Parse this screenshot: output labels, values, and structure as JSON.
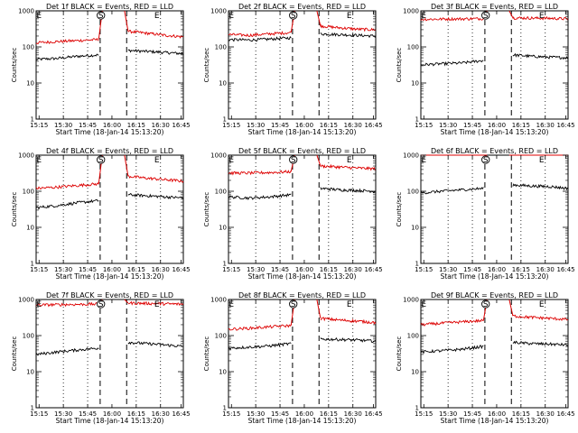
{
  "chart_data": [
    {
      "type": "line",
      "title": "Det 1f BLACK = Events, RED = LLD",
      "xlabel": "Start Time (18-Jan-14 15:13:20)",
      "ylabel": "Counts/sec",
      "xtick_labels": [
        "15:15",
        "15:30",
        "15:45",
        "16:00",
        "16:15",
        "16:30",
        "16:45"
      ],
      "ytick_labels": [
        "1",
        "10",
        "100",
        "1000"
      ],
      "ylim": [
        1,
        1000
      ],
      "markers": [
        "E",
        "S",
        "E"
      ],
      "series": [
        {
          "color": "#000000",
          "left": [
            45,
            48,
            55,
            60
          ],
          "right": [
            80,
            75,
            70,
            65
          ]
        },
        {
          "color": "#dd0000",
          "left": [
            130,
            140,
            150,
            160
          ],
          "right": [
            270,
            240,
            210,
            190
          ]
        }
      ]
    },
    {
      "type": "line",
      "title": "Det 2f BLACK = Events, RED = LLD",
      "xlabel": "Start Time (18-Jan-14 15:13:20)",
      "ylabel": "Counts/sec",
      "xtick_labels": [
        "15:15",
        "15:30",
        "15:45",
        "16:00",
        "16:15",
        "16:30",
        "16:45"
      ],
      "ytick_labels": [
        "1",
        "10",
        "100",
        "1000"
      ],
      "ylim": [
        1,
        1000
      ],
      "markers": [
        "E",
        "S",
        "E"
      ],
      "series": [
        {
          "color": "#000000",
          "left": [
            160,
            155,
            165,
            180
          ],
          "right": [
            230,
            220,
            210,
            200
          ]
        },
        {
          "color": "#dd0000",
          "left": [
            220,
            210,
            230,
            250
          ],
          "right": [
            380,
            340,
            310,
            300
          ]
        }
      ]
    },
    {
      "type": "line",
      "title": "Det 3f BLACK = Events, RED = LLD",
      "xlabel": "Start Time (18-Jan-14 15:13:20)",
      "ylabel": "Counts/sec",
      "xtick_labels": [
        "15:15",
        "15:30",
        "15:45",
        "16:00",
        "16:15",
        "16:30",
        "16:45"
      ],
      "ytick_labels": [
        "1",
        "10",
        "100",
        "1000"
      ],
      "ylim": [
        1,
        1000
      ],
      "markers": [
        "E",
        "S",
        "E"
      ],
      "series": [
        {
          "color": "#000000",
          "left": [
            32,
            34,
            36,
            42
          ],
          "right": [
            60,
            55,
            52,
            50
          ]
        },
        {
          "color": "#dd0000",
          "left": [
            580,
            590,
            600,
            610
          ],
          "right": [
            640,
            630,
            620,
            600
          ]
        }
      ]
    },
    {
      "type": "line",
      "title": "Det 4f BLACK = Events, RED = LLD",
      "xlabel": "Start Time (18-Jan-14 15:13:20)",
      "ylabel": "Counts/sec",
      "xtick_labels": [
        "15:15",
        "15:30",
        "15:45",
        "16:00",
        "16:15",
        "16:30",
        "16:45"
      ],
      "ytick_labels": [
        "1",
        "10",
        "100",
        "1000"
      ],
      "ylim": [
        1,
        1000
      ],
      "markers": [
        "E",
        "S",
        "E"
      ],
      "series": [
        {
          "color": "#000000",
          "left": [
            35,
            40,
            48,
            55
          ],
          "right": [
            80,
            75,
            70,
            65
          ]
        },
        {
          "color": "#dd0000",
          "left": [
            120,
            130,
            145,
            160
          ],
          "right": [
            260,
            230,
            210,
            190
          ]
        }
      ]
    },
    {
      "type": "line",
      "title": "Det 5f BLACK = Events, RED = LLD",
      "xlabel": "Start Time (18-Jan-14 15:13:20)",
      "ylabel": "Counts/sec",
      "xtick_labels": [
        "15:15",
        "15:30",
        "15:45",
        "16:00",
        "16:15",
        "16:30",
        "16:45"
      ],
      "ytick_labels": [
        "1",
        "10",
        "100",
        "1000"
      ],
      "ylim": [
        1,
        1000
      ],
      "markers": [
        "E",
        "S",
        "E"
      ],
      "series": [
        {
          "color": "#000000",
          "left": [
            70,
            65,
            70,
            80
          ],
          "right": [
            120,
            110,
            105,
            100
          ]
        },
        {
          "color": "#dd0000",
          "left": [
            320,
            320,
            330,
            350
          ],
          "right": [
            500,
            470,
            440,
            420
          ]
        }
      ]
    },
    {
      "type": "line",
      "title": "Det 6f BLACK = Events, RED = LLD",
      "xlabel": "Start Time (18-Jan-14 15:13:20)",
      "ylabel": "Counts/sec",
      "xtick_labels": [
        "15:15",
        "15:30",
        "15:45",
        "16:00",
        "16:15",
        "16:30",
        "16:45"
      ],
      "ytick_labels": [
        "1",
        "10",
        "100",
        "1000"
      ],
      "ylim": [
        1,
        1000
      ],
      "markers": [
        "E",
        "S",
        "E"
      ],
      "series": [
        {
          "color": "#000000",
          "left": [
            90,
            100,
            110,
            120
          ],
          "right": [
            150,
            140,
            135,
            120
          ]
        },
        {
          "color": "#dd0000",
          "left": [
            1100,
            1100,
            1100,
            1100
          ],
          "right": [
            1100,
            1100,
            1100,
            1100
          ]
        }
      ]
    },
    {
      "type": "line",
      "title": "Det 7f BLACK = Events, RED = LLD",
      "xlabel": "Start Time (18-Jan-14 15:13:20)",
      "ylabel": "Counts/sec",
      "xtick_labels": [
        "15:15",
        "15:30",
        "15:45",
        "16:00",
        "16:15",
        "16:30",
        "16:45"
      ],
      "ytick_labels": [
        "1",
        "10",
        "100",
        "1000"
      ],
      "ylim": [
        1,
        1000
      ],
      "markers": [
        "E",
        "S",
        "E"
      ],
      "series": [
        {
          "color": "#000000",
          "left": [
            30,
            35,
            40,
            45
          ],
          "right": [
            65,
            60,
            55,
            50
          ]
        },
        {
          "color": "#dd0000",
          "left": [
            700,
            720,
            730,
            750
          ],
          "right": [
            800,
            780,
            760,
            740
          ]
        }
      ]
    },
    {
      "type": "line",
      "title": "Det 8f BLACK = Events, RED = LLD",
      "xlabel": "Start Time (18-Jan-14 15:13:20)",
      "ylabel": "Counts/sec",
      "xtick_labels": [
        "15:15",
        "15:30",
        "15:45",
        "16:00",
        "16:15",
        "16:30",
        "16:45"
      ],
      "ytick_labels": [
        "1",
        "10",
        "100",
        "1000"
      ],
      "ylim": [
        1,
        1000
      ],
      "markers": [
        "E",
        "S",
        "E"
      ],
      "series": [
        {
          "color": "#000000",
          "left": [
            45,
            48,
            52,
            60
          ],
          "right": [
            80,
            78,
            75,
            70
          ]
        },
        {
          "color": "#dd0000",
          "left": [
            150,
            160,
            175,
            190
          ],
          "right": [
            300,
            270,
            250,
            230
          ]
        }
      ]
    },
    {
      "type": "line",
      "title": "Det 9f BLACK = Events, RED = LLD",
      "xlabel": "Start Time (18-Jan-14 15:13:20)",
      "ylabel": "Counts/sec",
      "xtick_labels": [
        "15:15",
        "15:30",
        "15:45",
        "16:00",
        "16:15",
        "16:30",
        "16:45"
      ],
      "ytick_labels": [
        "1",
        "10",
        "100",
        "1000"
      ],
      "ylim": [
        1,
        1000
      ],
      "markers": [
        "E",
        "S",
        "E"
      ],
      "series": [
        {
          "color": "#000000",
          "left": [
            35,
            38,
            42,
            50
          ],
          "right": [
            65,
            60,
            58,
            55
          ]
        },
        {
          "color": "#dd0000",
          "left": [
            200,
            220,
            240,
            260
          ],
          "right": [
            350,
            320,
            300,
            280
          ]
        }
      ]
    }
  ]
}
